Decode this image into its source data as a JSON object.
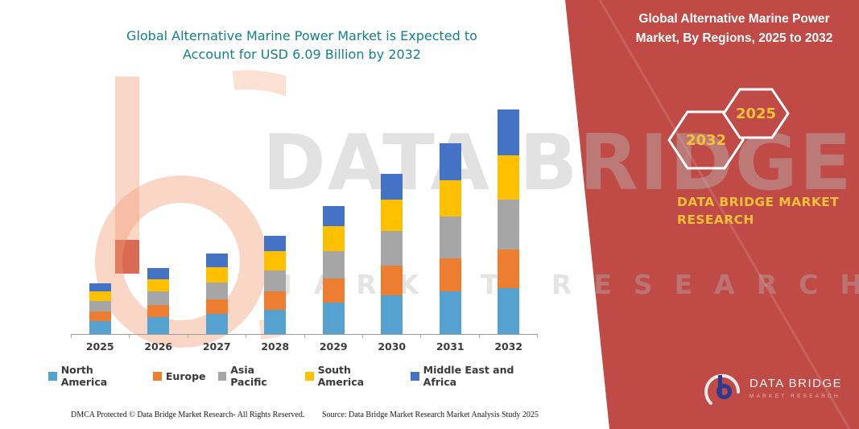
{
  "header": {
    "title_left_line1": "Global Alternative Marine Power Market is Expected to",
    "title_left_line2": "Account for USD 6.09 Billion by 2032",
    "title_right_line1": "Global Alternative Marine Power",
    "title_right_line2": "Market, By Regions, 2025 to 2032"
  },
  "badges": {
    "hexagon_back_label": "2032",
    "hexagon_front_label": "2025"
  },
  "brand_panel": {
    "line1": "DATA BRIDGE MARKET",
    "line2": "RESEARCH"
  },
  "watermark": {
    "big_text": "DATA BRIDGE",
    "sub_text": "MARKET RESEARCH"
  },
  "logo": {
    "wordmark": "DATA BRIDGE",
    "tagline": "MARKET RESEARCH"
  },
  "footer": {
    "left": "DMCA Protected © Data Bridge Market Research-  All Rights Reserved.",
    "right": "Source: Data Bridge Market Research  Market Analysis Study 2025"
  },
  "colors": {
    "accent_red": "#C04A46",
    "accent_teal": "#15808D",
    "accent_gold": "#F2C137"
  },
  "chart_data": {
    "type": "bar",
    "stacked": true,
    "title": "Global Alternative Marine Power Market, By Regions, 2025 to 2032",
    "xlabel": "",
    "ylabel": "",
    "value_unit": "USD Billion",
    "ylim": [
      0,
      6.7
    ],
    "grid": false,
    "legend_position": "bottom",
    "categories": [
      "2025",
      "2026",
      "2027",
      "2028",
      "2029",
      "2030",
      "2031",
      "2032"
    ],
    "series": [
      {
        "name": "North America",
        "color": "#55A1CF",
        "values": [
          0.36,
          0.45,
          0.55,
          0.66,
          0.86,
          1.05,
          1.15,
          1.25
        ]
      },
      {
        "name": "Europe",
        "color": "#ED7D31",
        "values": [
          0.25,
          0.33,
          0.4,
          0.5,
          0.64,
          0.8,
          0.9,
          1.05
        ]
      },
      {
        "name": "Asia Pacific",
        "color": "#A6A6A6",
        "values": [
          0.28,
          0.37,
          0.45,
          0.56,
          0.75,
          0.95,
          1.13,
          1.35
        ]
      },
      {
        "name": "South America",
        "color": "#FFC000",
        "values": [
          0.26,
          0.34,
          0.42,
          0.52,
          0.68,
          0.85,
          0.98,
          1.2
        ]
      },
      {
        "name": "Middle East and Africa",
        "color": "#4472C4",
        "values": [
          0.22,
          0.29,
          0.36,
          0.42,
          0.55,
          0.7,
          1.02,
          1.24
        ]
      }
    ],
    "totals": [
      1.37,
      1.78,
      2.18,
      2.66,
      3.48,
      4.35,
      5.18,
      6.09
    ],
    "note": "Segment values estimated from bar heights; 2032 total stated as USD 6.09 Billion"
  }
}
